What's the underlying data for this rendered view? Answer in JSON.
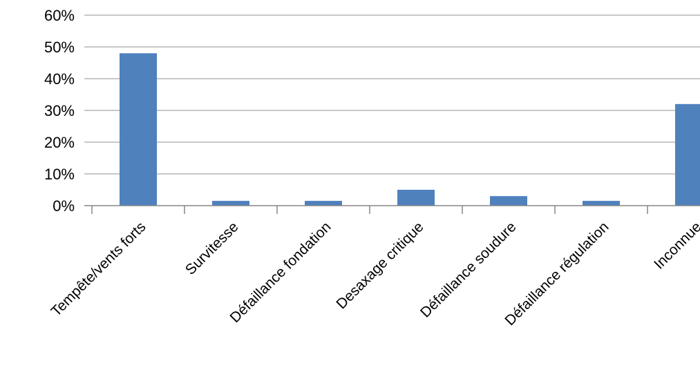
{
  "chart_data": {
    "type": "bar",
    "categories": [
      "Tempête/vents forts",
      "Survitesse",
      "Défaillance fondation",
      "Desaxage  critique",
      "Défaillance soudure",
      "Défaillance régulation",
      "Inconnue"
    ],
    "values": [
      48,
      1.5,
      1.5,
      5,
      3,
      1.5,
      32
    ],
    "value_unit": "%",
    "ylim": [
      0,
      60
    ],
    "yticks": [
      "0%",
      "10%",
      "20%",
      "30%",
      "40%",
      "50%",
      "60%"
    ],
    "grid": true,
    "legend": "none",
    "title": "",
    "xlabel": "",
    "ylabel": "",
    "colors": {
      "bar": "#4f81bd",
      "grid": "#a6a6a6",
      "axis": "#868686",
      "text": "#000000"
    }
  }
}
